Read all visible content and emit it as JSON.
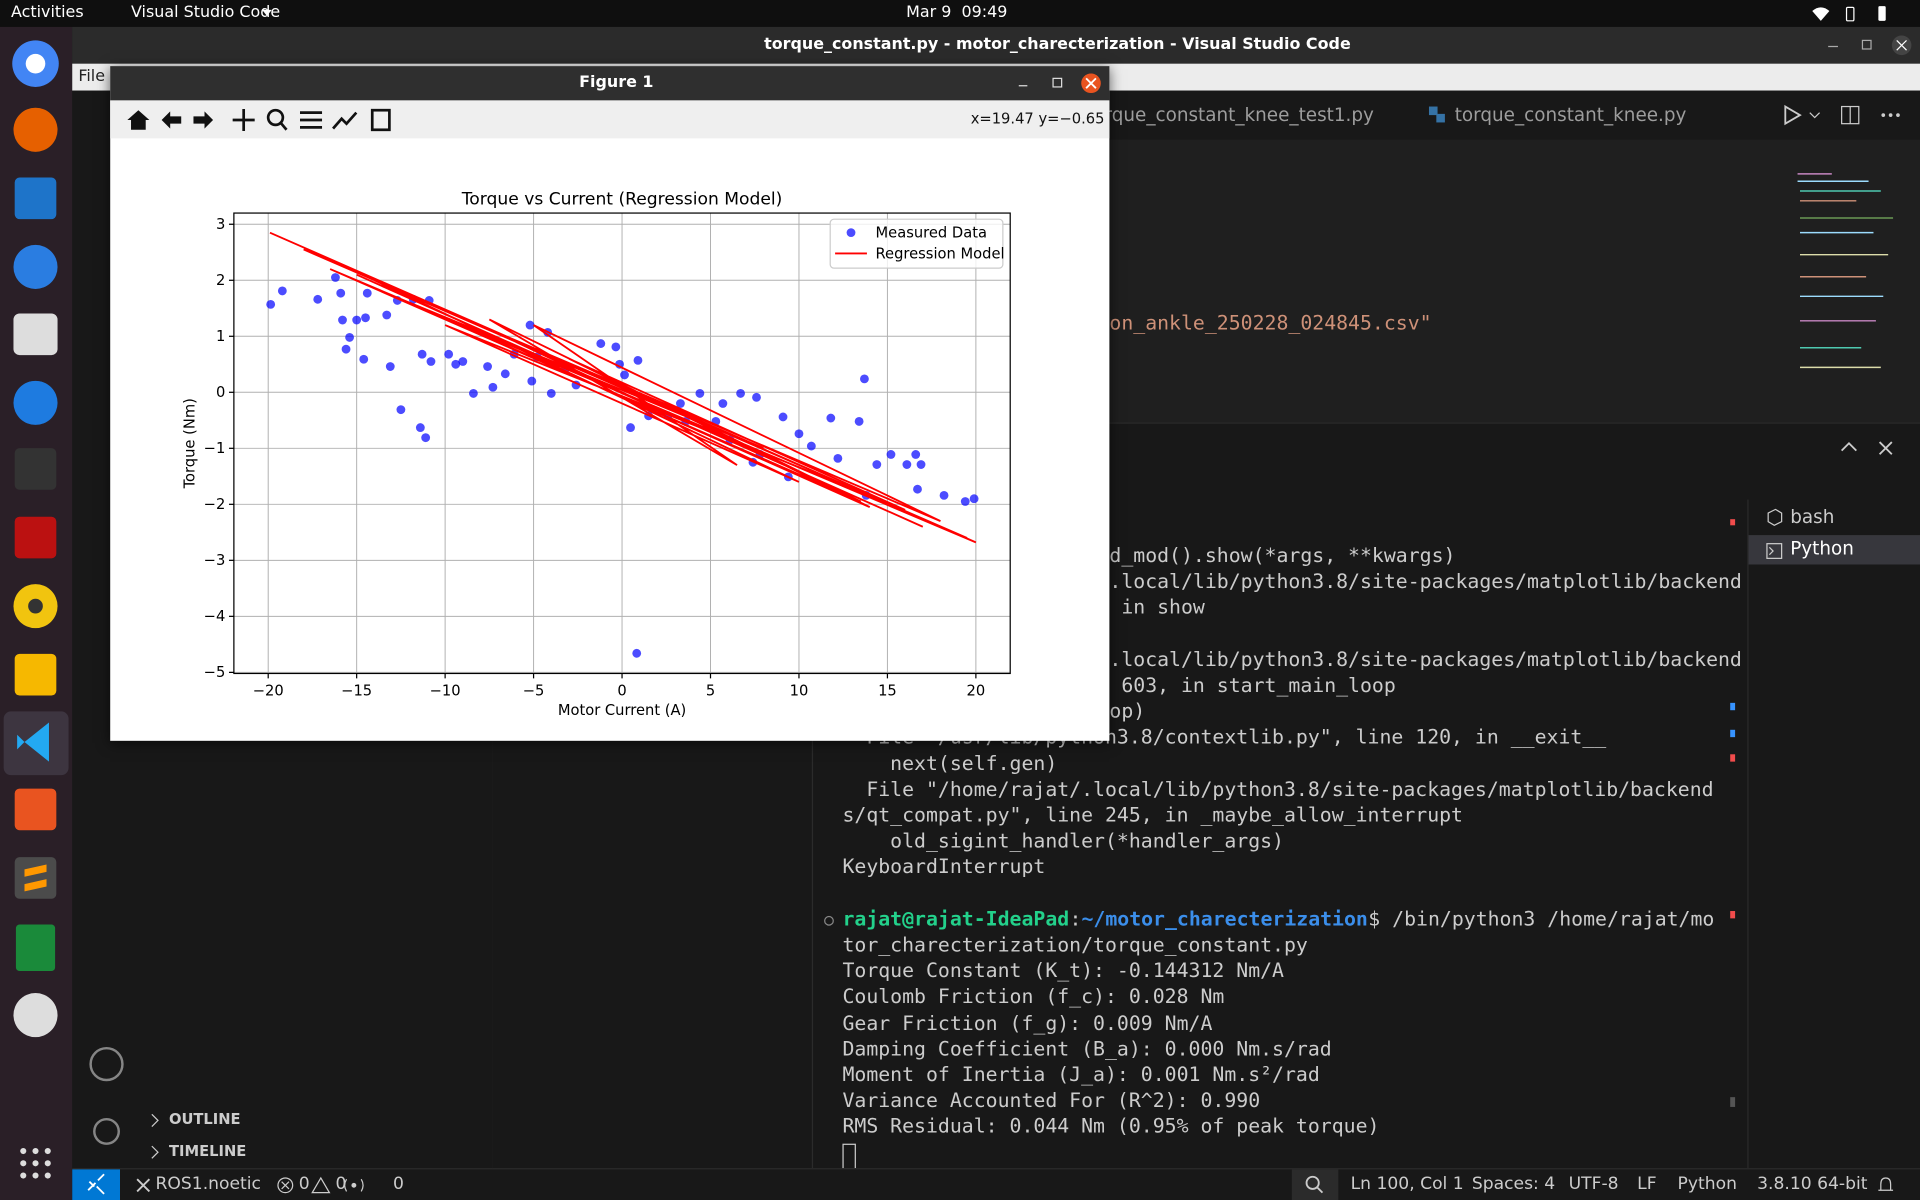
{
  "topbar": {
    "activities": "Activities",
    "app": "Visual Studio Code",
    "clock": "Mar 9  09:49"
  },
  "window_title": "torque_constant.py - motor_charecterization - Visual Studio Code",
  "menu": {
    "file": "File"
  },
  "tabs": [
    "rque_constant_knee_test1.py",
    "torque_constant_knee.py"
  ],
  "editor_text": "on_ankle_250228_024845.csv\"",
  "sidebar": {
    "outline": "OUTLINE",
    "timeline": "TIMELINE"
  },
  "terminal": {
    "fragments": [
      "d_mod().show(*args, **kwargs)",
      ".local/lib/python3.8/site-packages/matplotlib/backend",
      " in show",
      ".local/lib/python3.8/site-packages/matplotlib/backend",
      " 603, in start_main_loop",
      "op)"
    ],
    "trace": [
      "  File \"/usr/lib/python3.8/contextlib.py\", line 120, in __exit__",
      "    next(self.gen)",
      "  File \"/home/rajat/.local/lib/python3.8/site-packages/matplotlib/backend",
      "s/qt_compat.py\", line 245, in _maybe_allow_interrupt",
      "    old_sigint_handler(*handler_args)",
      "KeyboardInterrupt"
    ],
    "prompt": {
      "user": "rajat@rajat-IdeaPad",
      "sep": ":",
      "path": "~/motor_charecterization",
      "command": "$ /bin/python3 /home/rajat/mo",
      "wrap": "tor_charecterization/torque_constant.py"
    },
    "output": [
      "Torque Constant (K_t): -0.144312 Nm/A",
      "Coulomb Friction (f_c): 0.028 Nm",
      "Gear Friction (f_g): 0.009 Nm/A",
      "Damping Coefficient (B_a): 0.000 Nm.s/rad",
      "Moment of Inertia (J_a): 0.001 Nm.s²/rad",
      "Variance Accounted For (R^2): 0.990",
      "RMS Residual: 0.044 Nm (0.95% of peak torque)"
    ],
    "sessions": [
      "bash",
      "Python"
    ]
  },
  "statusbar": {
    "remote": "ROS1.noetic",
    "errors": 0,
    "warnings": 0,
    "ports": 0,
    "position": "Ln 100, Col 1",
    "spaces": "Spaces: 4",
    "encoding": "UTF-8",
    "eol": "LF",
    "language": "Python",
    "interpreter": "3.8.10 64-bit"
  },
  "figure": {
    "title": "Figure 1",
    "coords": "x=19.47 y=−0.65"
  },
  "chart_data": {
    "type": "scatter",
    "title": "Torque vs Current (Regression Model)",
    "x_label": "Motor Current (A)",
    "y_label": "Torque (Nm)",
    "xlim": [
      -21.94,
      21.94
    ],
    "ylim": [
      -5.02,
      3.2
    ],
    "xticks": [
      {
        "value": -20,
        "label": "−20"
      },
      {
        "value": -15,
        "label": "−15"
      },
      {
        "value": -10,
        "label": "−10"
      },
      {
        "value": -5,
        "label": "−5"
      },
      0,
      5,
      10,
      15,
      20
    ],
    "yticks": [
      {
        "value": -5,
        "label": "−5"
      },
      {
        "value": -4,
        "label": "−4"
      },
      {
        "value": -3,
        "label": "−3"
      },
      {
        "value": -2,
        "label": "−2"
      },
      {
        "value": -1,
        "label": "−1"
      },
      0,
      1,
      2,
      3
    ],
    "grid": true,
    "legend": "upper right",
    "series": [
      {
        "name": "Measured Data",
        "type": "scatter",
        "color": "#0000ff",
        "x": [
          -19.86,
          -19.2,
          -17.2,
          -16.2,
          -15.9,
          -15.8,
          -15.6,
          -15.4,
          -15.0,
          -14.6,
          -14.5,
          -13.1,
          -12.5,
          -13.3,
          -11.8,
          -11.4,
          -11.1,
          -10.9,
          -11.3,
          -10.8,
          -9.8,
          -9.0,
          -8.4,
          -7.6,
          -7.3,
          -6.6,
          -6.1,
          -5.2,
          -5.1,
          -4.2,
          -4.0,
          -3.2,
          -1.2,
          -0.35,
          -0.14,
          0.14,
          0.48,
          0.83,
          0.9,
          1.5,
          2.6,
          3.6,
          4.4,
          5.3,
          5.7,
          6.7,
          7.6,
          7.8,
          9.1,
          9.4,
          10.0,
          10.7,
          11.8,
          12.2,
          13.4,
          13.7,
          14.4,
          15.2,
          16.1,
          16.6,
          16.9,
          18.2,
          19.4,
          19.9,
          13.8,
          16.7,
          6.1,
          7.4,
          3.3,
          -2.6,
          -4.8,
          -9.4,
          -14.4,
          -12.7
        ],
        "values": [
          1.57,
          1.81,
          1.66,
          2.05,
          1.77,
          1.29,
          0.77,
          0.98,
          1.29,
          0.59,
          1.33,
          0.46,
          -0.31,
          1.38,
          1.66,
          -0.63,
          -0.81,
          1.64,
          0.68,
          0.55,
          0.68,
          0.55,
          -0.02,
          0.46,
          0.09,
          0.33,
          0.68,
          1.2,
          0.2,
          1.07,
          -0.02,
          0.42,
          0.87,
          0.81,
          0.5,
          0.31,
          -0.63,
          -4.66,
          0.57,
          -0.42,
          -0.42,
          -0.52,
          -0.02,
          -0.52,
          -0.2,
          -0.02,
          -0.09,
          -1.11,
          -0.44,
          -1.51,
          -0.74,
          -0.96,
          -0.46,
          -1.18,
          -0.52,
          0.24,
          -1.29,
          -1.11,
          -1.29,
          -1.11,
          -1.29,
          -1.84,
          -1.95,
          -1.9,
          -1.84,
          -1.73,
          -0.85,
          -1.25,
          -0.2,
          0.13,
          0.63,
          0.5,
          1.77,
          1.64
        ]
      },
      {
        "name": "Regression Model",
        "type": "line",
        "color": "#ff0000",
        "x": [
          -19.9,
          20,
          -16.5,
          13.5,
          -7.5,
          6.5,
          -5,
          18,
          -14,
          10,
          -10,
          16,
          -3,
          14,
          -12,
          8,
          -18,
          19.5,
          -6,
          2,
          -15,
          17
        ],
        "values": [
          2.85,
          -2.68,
          2.2,
          -1.95,
          1.3,
          -1.3,
          1.2,
          -2.3,
          2.0,
          -1.6,
          1.2,
          -2.1,
          0.6,
          -2.05,
          1.6,
          -1.0,
          2.55,
          -2.6,
          0.9,
          -0.3,
          2.1,
          -2.4
        ]
      }
    ]
  }
}
